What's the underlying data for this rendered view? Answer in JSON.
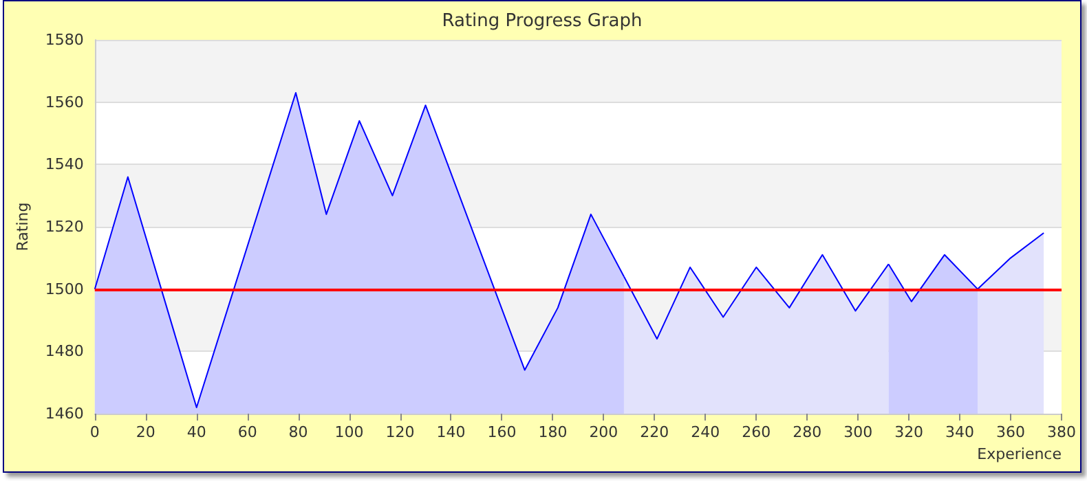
{
  "chart_data": {
    "type": "area",
    "title": "Rating Progress Graph",
    "xlabel": "Experience",
    "ylabel": "Rating",
    "series": [
      {
        "color": "#ccccff",
        "x": [
          0,
          13,
          40,
          79,
          91,
          104,
          117,
          130,
          169,
          182,
          195,
          208
        ],
        "values": [
          1500,
          1536,
          1462,
          1563,
          1524,
          1554,
          1530,
          1559,
          1474,
          1494,
          1524,
          1504
        ]
      },
      {
        "color": "#e2e2fc",
        "x": [
          208,
          221,
          234,
          247,
          260,
          273,
          286,
          299,
          312
        ],
        "values": [
          1504,
          1484,
          1507,
          1491,
          1507,
          1494,
          1511,
          1493,
          1508
        ]
      },
      {
        "color": "#ccccff",
        "x": [
          312,
          321,
          334,
          347
        ],
        "values": [
          1508,
          1496,
          1511,
          1500
        ]
      },
      {
        "color": "#e2e2fc",
        "x": [
          347,
          360,
          373
        ],
        "values": [
          1500,
          1510,
          1518
        ]
      }
    ],
    "xlim": [
      0,
      380
    ],
    "xticks": [
      0,
      20,
      40,
      60,
      80,
      100,
      120,
      140,
      160,
      180,
      200,
      220,
      240,
      260,
      280,
      300,
      320,
      340,
      360,
      380
    ],
    "ylim": [
      1460,
      1580
    ],
    "yticks": [
      1460,
      1480,
      1500,
      1520,
      1540,
      1560,
      1580
    ],
    "ref_lines": [
      {
        "axis": "y",
        "value": 1500,
        "color": "#ff0000"
      }
    ],
    "grid": "y",
    "marker": "none",
    "line_style": "solid"
  }
}
